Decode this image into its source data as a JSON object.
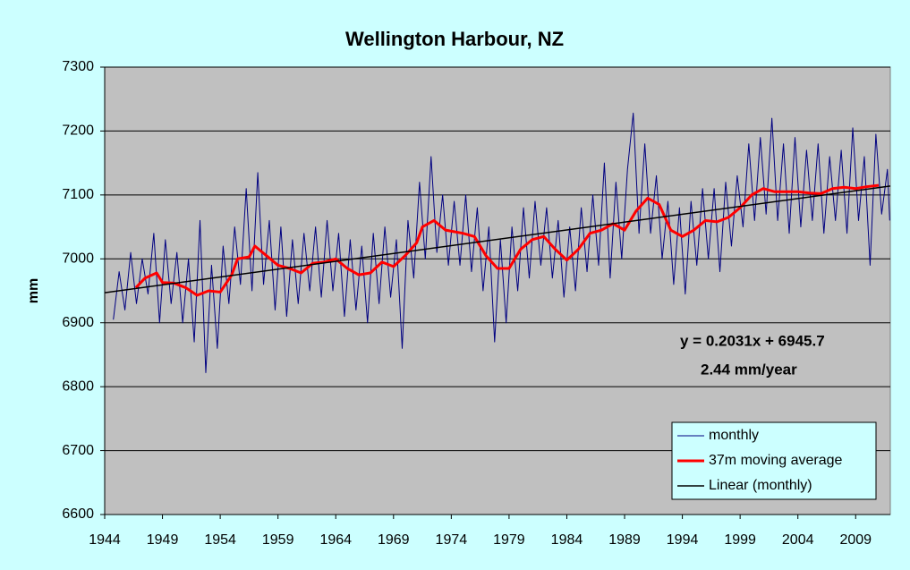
{
  "chart_data": {
    "type": "line",
    "title": "Wellington Harbour, NZ",
    "y_label": "mm",
    "annotations": [
      "y = 0.2031x + 6945.7",
      "2.44 mm/year"
    ],
    "xlim": [
      1944,
      2012
    ],
    "xticks": [
      1944,
      1949,
      1954,
      1959,
      1964,
      1969,
      1974,
      1979,
      1984,
      1989,
      1994,
      1999,
      2004,
      2009
    ],
    "ylim": [
      6600,
      7300
    ],
    "yticks": [
      6600,
      6700,
      6800,
      6900,
      7000,
      7100,
      7200,
      7300
    ],
    "grid": true,
    "legend": "lower right",
    "background": "#ccffff",
    "plot_background": "#c0c0c0",
    "series": [
      {
        "name": "monthly",
        "color": "#000080",
        "width": 1,
        "x": [
          1944.75,
          1945.25,
          1945.75,
          1946.25,
          1946.75,
          1947.25,
          1947.75,
          1948.25,
          1948.75,
          1949.25,
          1949.75,
          1950.25,
          1950.75,
          1951.25,
          1951.75,
          1952.25,
          1952.75,
          1953.25,
          1953.75,
          1954.25,
          1954.75,
          1955.25,
          1955.75,
          1956.25,
          1956.75,
          1957.25,
          1957.75,
          1958.25,
          1958.75,
          1959.25,
          1959.75,
          1960.25,
          1960.75,
          1961.25,
          1961.75,
          1962.25,
          1962.75,
          1963.25,
          1963.75,
          1964.25,
          1964.75,
          1965.25,
          1965.75,
          1966.25,
          1966.75,
          1967.25,
          1967.75,
          1968.25,
          1968.75,
          1969.25,
          1969.75,
          1970.25,
          1970.75,
          1971.25,
          1971.75,
          1972.25,
          1972.75,
          1973.25,
          1973.75,
          1974.25,
          1974.75,
          1975.25,
          1975.75,
          1976.25,
          1976.75,
          1977.25,
          1977.75,
          1978.25,
          1978.75,
          1979.25,
          1979.75,
          1980.25,
          1980.75,
          1981.25,
          1981.75,
          1982.25,
          1982.75,
          1983.25,
          1983.75,
          1984.25,
          1984.75,
          1985.25,
          1985.75,
          1986.25,
          1986.75,
          1987.25,
          1987.75,
          1988.25,
          1988.75,
          1989.25,
          1989.75,
          1990.25,
          1990.75,
          1991.25,
          1991.75,
          1992.25,
          1992.75,
          1993.25,
          1993.75,
          1994.25,
          1994.75,
          1995.25,
          1995.75,
          1996.25,
          1996.75,
          1997.25,
          1997.75,
          1998.25,
          1998.75,
          1999.25,
          1999.75,
          2000.25,
          2000.75,
          2001.25,
          2001.75,
          2002.25,
          2002.75,
          2003.25,
          2003.75,
          2004.25,
          2004.75,
          2005.25,
          2005.75,
          2006.25,
          2006.75,
          2007.25,
          2007.75,
          2008.25,
          2008.75,
          2009.25,
          2009.75,
          2010.25,
          2010.75,
          2011.25,
          2011.75,
          2011.95
        ],
        "values": [
          6905,
          6980,
          6920,
          7010,
          6930,
          7000,
          6945,
          7040,
          6900,
          7030,
          6930,
          7010,
          6900,
          7000,
          6870,
          7060,
          6822,
          6990,
          6860,
          7020,
          6930,
          7050,
          6960,
          7110,
          6950,
          7135,
          6960,
          7060,
          6920,
          7050,
          6910,
          7030,
          6930,
          7040,
          6950,
          7050,
          6940,
          7060,
          6950,
          7040,
          6910,
          7030,
          6920,
          7020,
          6900,
          7040,
          6930,
          7050,
          6940,
          7030,
          6860,
          7060,
          6970,
          7120,
          7000,
          7160,
          7010,
          7100,
          6990,
          7090,
          6990,
          7100,
          6980,
          7080,
          6950,
          7050,
          6870,
          7030,
          6900,
          7050,
          6950,
          7080,
          6970,
          7090,
          6990,
          7080,
          6970,
          7060,
          6940,
          7050,
          6950,
          7080,
          6980,
          7100,
          6990,
          7150,
          6970,
          7120,
          7000,
          7140,
          7228,
          7040,
          7180,
          7040,
          7130,
          7000,
          7090,
          6960,
          7080,
          6945,
          7090,
          6990,
          7110,
          7000,
          7110,
          6980,
          7120,
          7020,
          7130,
          7050,
          7180,
          7060,
          7190,
          7070,
          7220,
          7060,
          7180,
          7040,
          7190,
          7050,
          7170,
          7060,
          7180,
          7040,
          7160,
          7060,
          7170,
          7040,
          7205,
          7060,
          7160,
          6990,
          7195,
          7070,
          7140,
          7060
        ]
      },
      {
        "name": "37m moving average",
        "color": "#ff0000",
        "width": 3,
        "x": [
          1946.7,
          1947.5,
          1948.5,
          1949,
          1950,
          1951,
          1952,
          1953,
          1954,
          1955,
          1955.5,
          1956.5,
          1957,
          1958,
          1959,
          1960,
          1961,
          1962,
          1963,
          1964,
          1965,
          1966,
          1967,
          1968,
          1969,
          1970,
          1971,
          1971.5,
          1972.5,
          1973.5,
          1975,
          1976,
          1977,
          1978,
          1979,
          1980,
          1981,
          1982,
          1983,
          1984,
          1985,
          1986,
          1987,
          1988,
          1989,
          1990,
          1991,
          1992,
          1993,
          1994,
          1995,
          1996,
          1997,
          1998,
          1999,
          2000,
          2001,
          2002,
          2003,
          2004,
          2005,
          2006,
          2007,
          2008,
          2009,
          2010,
          2011
        ],
        "values": [
          6955,
          6970,
          6978,
          6963,
          6962,
          6955,
          6943,
          6950,
          6948,
          6975,
          7000,
          7003,
          7020,
          7005,
          6990,
          6985,
          6978,
          6993,
          6995,
          7000,
          6985,
          6975,
          6978,
          6995,
          6988,
          7005,
          7025,
          7050,
          7060,
          7045,
          7040,
          7035,
          7005,
          6985,
          6985,
          7015,
          7030,
          7035,
          7015,
          6998,
          7015,
          7040,
          7045,
          7055,
          7045,
          7075,
          7095,
          7085,
          7045,
          7035,
          7045,
          7060,
          7058,
          7065,
          7080,
          7100,
          7110,
          7105,
          7105,
          7105,
          7103,
          7102,
          7110,
          7112,
          7110,
          7113,
          7115
        ]
      },
      {
        "name": "Linear (monthly)",
        "color": "#000000",
        "width": 1.5,
        "x": [
          1944,
          2012
        ],
        "values": [
          6947,
          7114
        ]
      }
    ]
  }
}
